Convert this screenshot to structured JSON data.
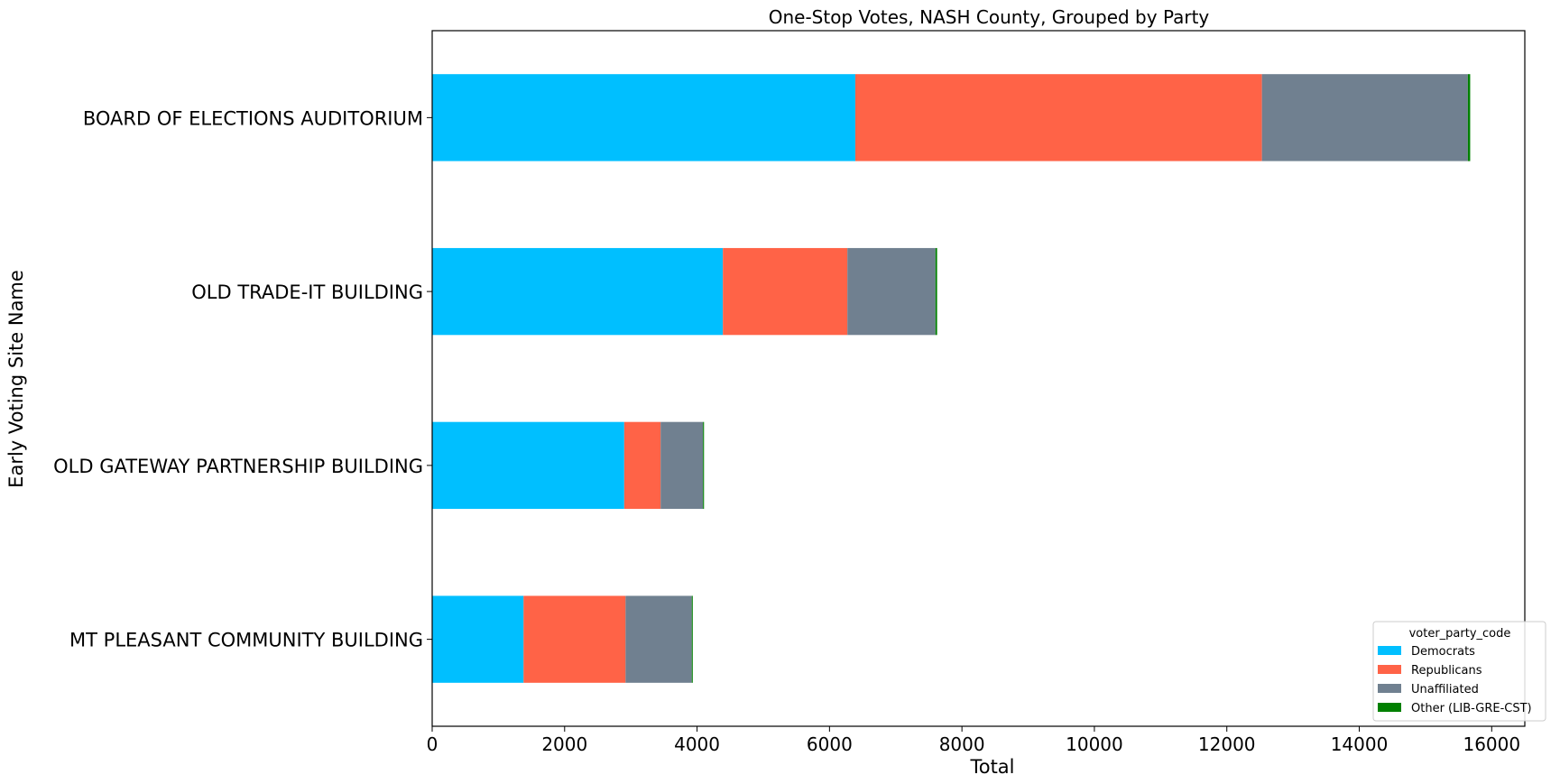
{
  "chart_data": {
    "type": "bar",
    "orientation": "horizontal",
    "stacked": true,
    "title": "One-Stop Votes, NASH County, Grouped by Party",
    "xlabel": "Total",
    "ylabel": "Early Voting Site Name",
    "xlim": [
      0,
      16500
    ],
    "xticks": [
      0,
      2000,
      4000,
      6000,
      8000,
      10000,
      12000,
      14000,
      16000
    ],
    "grid": false,
    "categories": [
      "BOARD OF ELECTIONS AUDITORIUM",
      "OLD TRADE-IT BUILDING",
      "OLD GATEWAY PARTNERSHIP BUILDING",
      "MT PLEASANT COMMUNITY BUILDING"
    ],
    "series": [
      {
        "name": "Democrats",
        "color": "#00bfff",
        "values": [
          6390,
          4390,
          2900,
          1380
        ]
      },
      {
        "name": "Republicans",
        "color": "#ff6347",
        "values": [
          6140,
          1880,
          550,
          1540
        ]
      },
      {
        "name": "Unaffiliated",
        "color": "#708090",
        "values": [
          3110,
          1330,
          640,
          1000
        ]
      },
      {
        "name": "Other (LIB-GRE-CST)",
        "color": "#008000",
        "values": [
          35,
          25,
          15,
          15
        ]
      }
    ],
    "legend": {
      "title": "voter_party_code",
      "placement": "lower-right"
    }
  }
}
